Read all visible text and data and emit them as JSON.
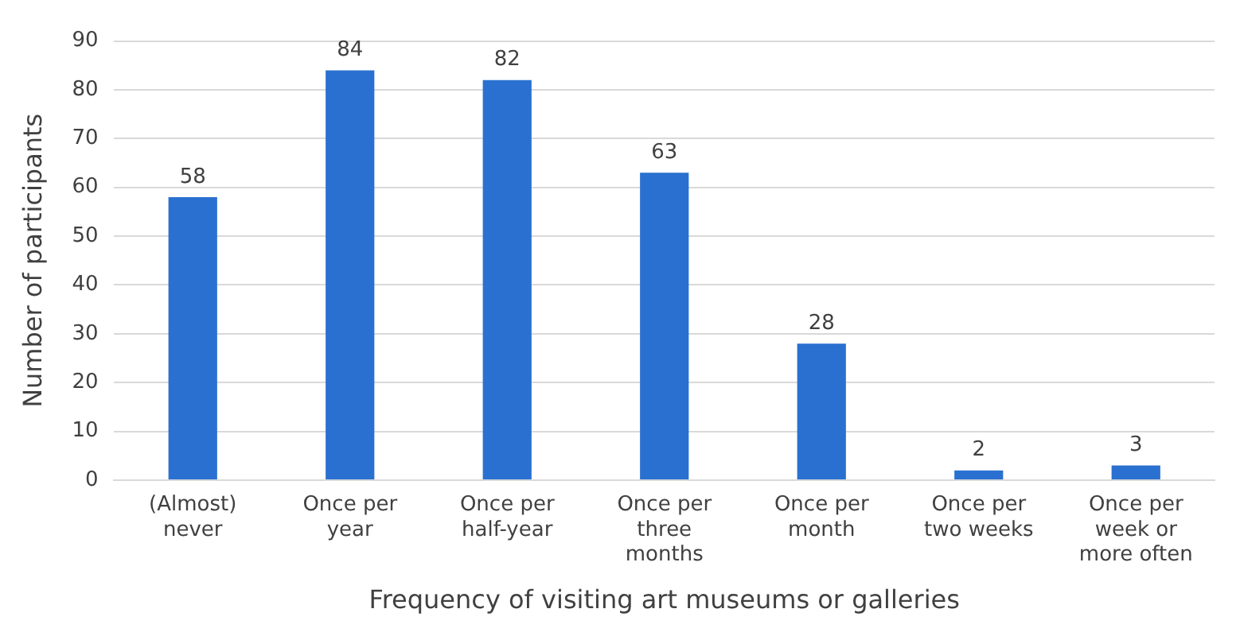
{
  "chart_data": {
    "type": "bar",
    "xlabel": "Frequency of visiting art museums or galleries",
    "ylabel": "Number of participants",
    "categories": [
      "(Almost) never",
      "Once per year",
      "Once per half-year",
      "Once per three months",
      "Once per month",
      "Once per two weeks",
      "Once per week or more often"
    ],
    "values": [
      58,
      84,
      82,
      63,
      28,
      2,
      3
    ],
    "color": "#2a70d0",
    "ylim": [
      0,
      90
    ],
    "yticks": [
      0,
      10,
      20,
      30,
      40,
      50,
      60,
      70,
      80,
      90
    ],
    "grid": "y",
    "data_labels": true,
    "legend": false
  }
}
